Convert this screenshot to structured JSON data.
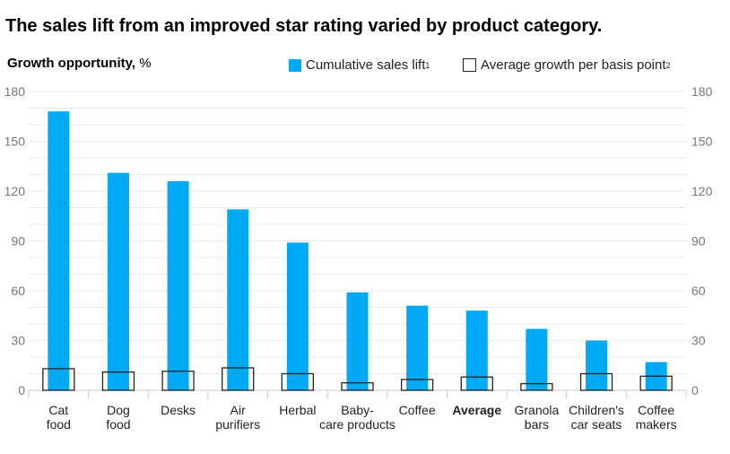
{
  "chart_data": {
    "type": "bar",
    "title": "The sales lift from an improved star rating varied by product category.",
    "ylabel": "Growth opportunity,",
    "yunit": "%",
    "ylim": [
      0,
      180
    ],
    "yticks": [
      0,
      30,
      60,
      90,
      120,
      150,
      180
    ],
    "grid": true,
    "legend_position": "top",
    "categories": [
      [
        "Cat",
        "food"
      ],
      [
        "Dog",
        "food"
      ],
      [
        "Desks"
      ],
      [
        "Air",
        "purifiers"
      ],
      [
        "Herbal"
      ],
      [
        "Baby-",
        "care products"
      ],
      [
        "Coffee"
      ],
      [
        "Average"
      ],
      [
        "Granola",
        "bars"
      ],
      [
        "Children's",
        "car seats"
      ],
      [
        "Coffee",
        "makers"
      ]
    ],
    "bold_category": "Average",
    "series": [
      {
        "name": "Cumulative sales lift",
        "footnote": "1",
        "style": "filled",
        "color": "#00a9f4",
        "values": [
          168,
          131,
          126,
          109,
          89,
          59,
          51,
          48,
          37,
          30,
          17
        ]
      },
      {
        "name": "Average growth per basis point",
        "footnote": "2",
        "style": "outline",
        "color": "#222222",
        "values": [
          13,
          11,
          11.5,
          13.5,
          10,
          4.5,
          6.5,
          8,
          4,
          10,
          8.5
        ]
      }
    ]
  }
}
